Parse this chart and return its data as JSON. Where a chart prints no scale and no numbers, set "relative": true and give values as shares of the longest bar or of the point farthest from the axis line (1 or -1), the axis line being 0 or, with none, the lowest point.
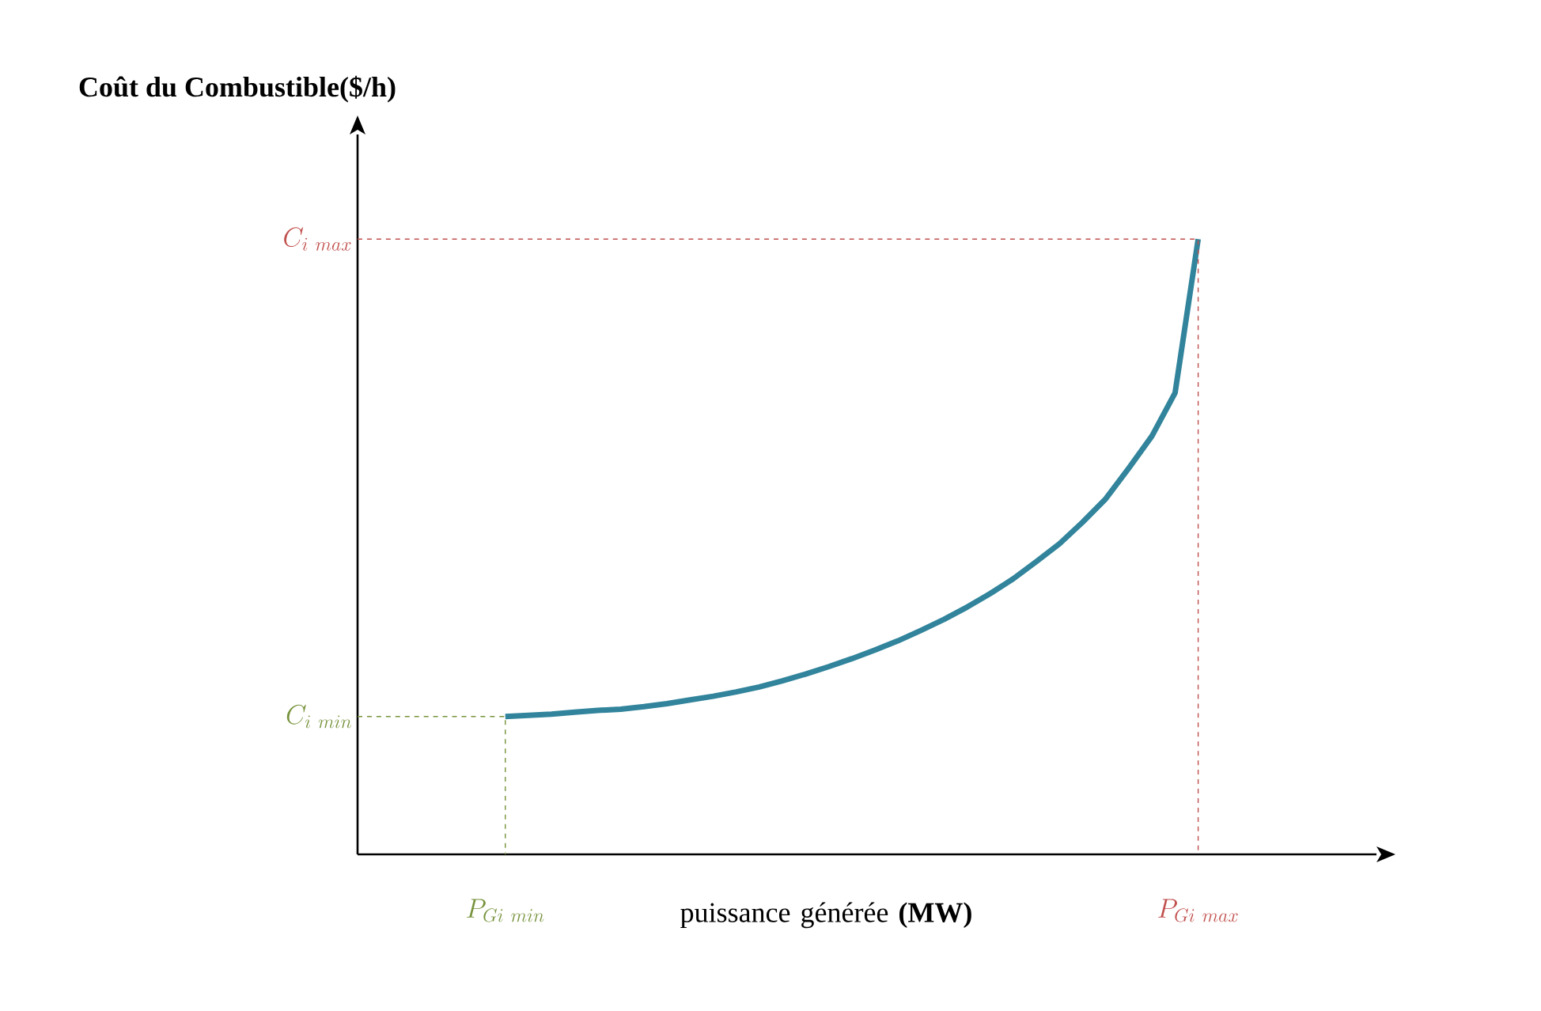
{
  "chart_data": {
    "type": "line",
    "relative": true,
    "xlabel": "puissance générée **(MW)**",
    "title": "**Coût du Combustible($/h)**",
    "categories": [
      null,
      null,
      null,
      null,
      null,
      null,
      null,
      null,
      null,
      null,
      null,
      null,
      null,
      null,
      null,
      null,
      null,
      null,
      null,
      null,
      null,
      null,
      null,
      null,
      null,
      null,
      null,
      null,
      null,
      null,
      null
    ],
    "series": [
      {
        "color": "#31849b",
        "values": [
          0.224,
          0.226,
          0.228,
          0.231,
          0.234,
          0.236,
          0.24,
          0.245,
          0.251,
          0.257,
          0.264,
          0.272,
          0.282,
          0.293,
          0.305,
          0.318,
          0.332,
          0.347,
          0.364,
          0.382,
          0.402,
          0.424,
          0.448,
          0.476,
          0.505,
          0.54,
          0.578,
          0.628,
          0.68,
          0.75,
          1
        ]
      }
    ],
    "ref_lines": [
      {
        "axis": "y",
        "value": 0.224,
        "label": "C_{i\\ min}",
        "color": "#77933c",
        "line_style": "dashed"
      },
      {
        "axis": "y",
        "value": 1,
        "label": "C_{i\\ max}",
        "color": "#c0504d",
        "line_style": "dashed"
      }
    ],
    "annotations": [
      "P_{Gi\\ min}",
      "P_{Gi\\ max}"
    ]
  }
}
